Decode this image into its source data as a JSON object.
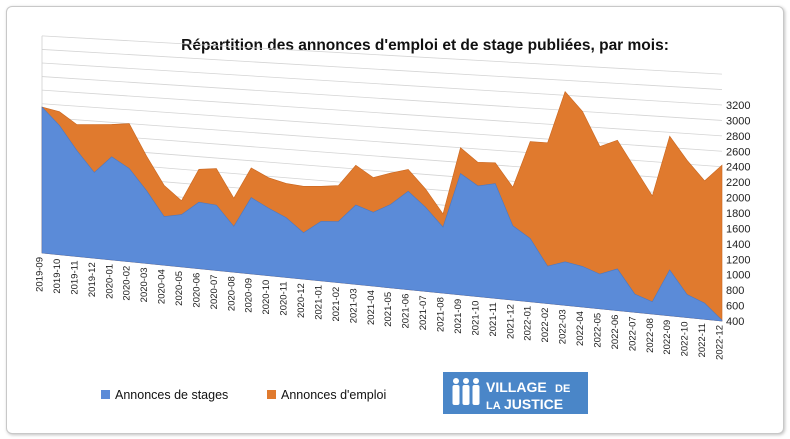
{
  "chart_data": {
    "type": "area",
    "title": "Répartition des annonces d'emploi et de stage publiées, par mois:",
    "xlabel": "",
    "ylabel": "",
    "ylim": [
      400,
      3200
    ],
    "yticks": [
      3200,
      3000,
      2800,
      2600,
      2400,
      2200,
      2000,
      1800,
      1600,
      1400,
      1200,
      1000,
      800,
      600,
      400
    ],
    "grid": true,
    "legend": "bottom",
    "categories": [
      "2019-09",
      "2019-10",
      "2019-11",
      "2019-12",
      "2020-01",
      "2020-02",
      "2020-03",
      "2020-04",
      "2020-05",
      "2020-06",
      "2020-07",
      "2020-08",
      "2020-09",
      "2020-10",
      "2020-11",
      "2020-12",
      "2021-01",
      "2021-02",
      "2021-03",
      "2021-04",
      "2021-05",
      "2021-06",
      "2021-07",
      "2021-08",
      "2021-09",
      "2021-10",
      "2021-11",
      "2021-12",
      "2022-01",
      "2022-02",
      "2022-03",
      "2022-04",
      "2022-05",
      "2022-06",
      "2022-07",
      "2022-08",
      "2022-09",
      "2022-10",
      "2022-11",
      "2022-12"
    ],
    "series": [
      {
        "name": "Annonces de stages",
        "color": "#5b8bd8",
        "values": [
          2550,
          2300,
          1950,
          1650,
          1900,
          1750,
          1450,
          1100,
          1150,
          1350,
          1330,
          1050,
          1480,
          1350,
          1240,
          1050,
          1230,
          1250,
          1500,
          1420,
          1550,
          1750,
          1550,
          1300,
          2050,
          1900,
          1950,
          1400,
          1250,
          900,
          980,
          940,
          860,
          950,
          640,
          560,
          1000,
          700,
          610,
          410
        ]
      },
      {
        "name": "Annonces d'emploi",
        "color": "#e07a2e",
        "values": [
          2550,
          2500,
          2330,
          2350,
          2370,
          2400,
          1950,
          1550,
          1350,
          1820,
          1850,
          1450,
          1900,
          1780,
          1720,
          1700,
          1720,
          1750,
          2050,
          1900,
          1980,
          2050,
          1800,
          1480,
          2400,
          2220,
          2230,
          1920,
          2550,
          2550,
          3250,
          3000,
          2550,
          2650,
          2300,
          1950,
          2750,
          2450,
          2200,
          2420
        ]
      }
    ]
  },
  "logo": {
    "line1": "VILLAGE",
    "line1b": "DE",
    "line2": "LA",
    "line2b": "JUSTICE",
    "bg_color": "#4a86c8"
  }
}
